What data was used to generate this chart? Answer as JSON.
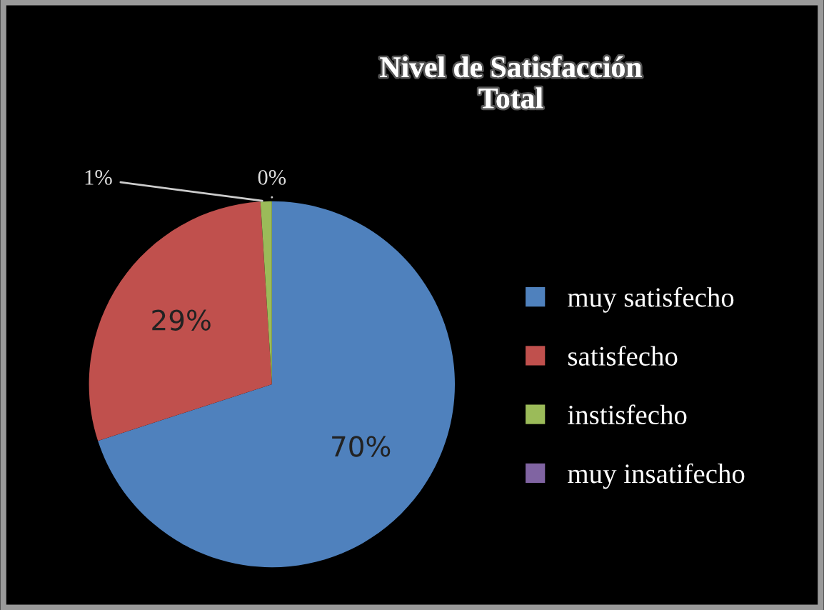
{
  "chart_data": {
    "type": "pie",
    "title": "Nivel de Satisfacción\nTotal",
    "categories": [
      "muy satisfecho",
      "satisfecho",
      "instisfecho",
      "muy insatifecho"
    ],
    "values": [
      70,
      29,
      1,
      0
    ],
    "colors": [
      "#4f81bd",
      "#c0504d",
      "#9bbb59",
      "#8064a2"
    ],
    "value_labels": [
      "70%",
      "29%",
      "1%",
      "0%"
    ],
    "legend": "right"
  }
}
